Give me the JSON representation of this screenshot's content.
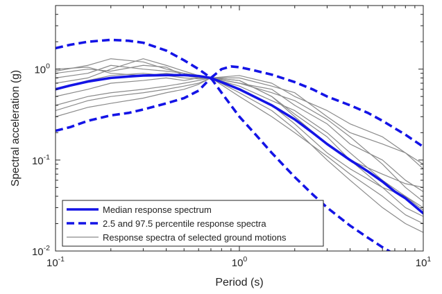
{
  "chart_data": {
    "type": "line",
    "title": "",
    "xlabel": "Period (s)",
    "ylabel": "Spectral acceleration (g)",
    "xscale": "log",
    "yscale": "log",
    "xlim": [
      0.1,
      10
    ],
    "ylim": [
      0.01,
      5
    ],
    "grid": false,
    "legend_position": "bottom-left",
    "x_ticks": [
      {
        "value": 0.1,
        "base": "10",
        "exp": "-1"
      },
      {
        "value": 1,
        "base": "10",
        "exp": "0"
      },
      {
        "value": 10,
        "base": "10",
        "exp": "1"
      }
    ],
    "y_ticks": [
      {
        "value": 0.01,
        "base": "10",
        "exp": "-2"
      },
      {
        "value": 0.1,
        "base": "10",
        "exp": "-1"
      },
      {
        "value": 1,
        "base": "10",
        "exp": "0"
      }
    ],
    "legend": [
      {
        "label": "Median response spectrum",
        "style": "median"
      },
      {
        "label": "2.5 and 97.5 percentile response spectra",
        "style": "percentile"
      },
      {
        "label": "Response spectra of selected ground motions",
        "style": "ground"
      }
    ],
    "colors": {
      "median": "#1414e6",
      "percentile": "#1414e6",
      "ground": "#8a8a8a",
      "axis": "#222222"
    },
    "series": [
      {
        "style": "median",
        "x": [
          0.1,
          0.12,
          0.15,
          0.2,
          0.25,
          0.3,
          0.4,
          0.5,
          0.6,
          0.7,
          0.8,
          1.0,
          1.2,
          1.5,
          2.0,
          2.5,
          3.0,
          4.0,
          5.0,
          6.0,
          7.0,
          8.0,
          10.0
        ],
        "y": [
          0.6,
          0.66,
          0.73,
          0.8,
          0.83,
          0.85,
          0.86,
          0.86,
          0.84,
          0.8,
          0.72,
          0.6,
          0.5,
          0.4,
          0.28,
          0.2,
          0.15,
          0.1,
          0.075,
          0.058,
          0.045,
          0.038,
          0.026
        ]
      },
      {
        "style": "percentile",
        "x": [
          0.1,
          0.12,
          0.15,
          0.2,
          0.25,
          0.3,
          0.4,
          0.5,
          0.6,
          0.7
        ],
        "y": [
          1.7,
          1.85,
          2.0,
          2.1,
          2.05,
          1.95,
          1.6,
          1.25,
          1.0,
          0.8
        ]
      },
      {
        "style": "percentile",
        "x": [
          0.7,
          0.8,
          0.9,
          1.0,
          1.2,
          1.5,
          2.0,
          2.5,
          3.0,
          4.0,
          5.0,
          6.0,
          8.0,
          10.0
        ],
        "y": [
          0.8,
          1.0,
          1.07,
          1.05,
          0.97,
          0.87,
          0.72,
          0.6,
          0.5,
          0.4,
          0.33,
          0.27,
          0.19,
          0.14
        ]
      },
      {
        "style": "percentile",
        "x": [
          0.1,
          0.12,
          0.15,
          0.2,
          0.25,
          0.3,
          0.4,
          0.5,
          0.6,
          0.7
        ],
        "y": [
          0.21,
          0.23,
          0.27,
          0.31,
          0.33,
          0.36,
          0.42,
          0.48,
          0.58,
          0.8
        ]
      },
      {
        "style": "percentile",
        "x": [
          0.7,
          0.8,
          1.0,
          1.2,
          1.5,
          2.0,
          2.5,
          3.0,
          4.0,
          5.0,
          6.0,
          6.8
        ],
        "y": [
          0.8,
          0.55,
          0.3,
          0.2,
          0.12,
          0.065,
          0.042,
          0.03,
          0.019,
          0.014,
          0.011,
          0.0095
        ]
      },
      {
        "style": "ground",
        "x": [
          0.1,
          0.15,
          0.2,
          0.3,
          0.4,
          0.5,
          0.6,
          0.7,
          1.0,
          1.5,
          2.0,
          3.0,
          4.0,
          6.0,
          8.0,
          10.0
        ],
        "y": [
          0.95,
          1.1,
          1.3,
          1.2,
          1.0,
          0.9,
          0.85,
          0.8,
          0.75,
          0.5,
          0.3,
          0.15,
          0.1,
          0.07,
          0.055,
          0.05
        ]
      },
      {
        "style": "ground",
        "x": [
          0.1,
          0.15,
          0.2,
          0.3,
          0.4,
          0.5,
          0.6,
          0.7,
          1.0,
          1.5,
          2.0,
          3.0,
          4.0,
          6.0,
          8.0,
          10.0
        ],
        "y": [
          0.9,
          1.0,
          0.95,
          1.1,
          1.05,
          0.85,
          0.82,
          0.8,
          0.65,
          0.45,
          0.35,
          0.2,
          0.12,
          0.06,
          0.04,
          0.03
        ]
      },
      {
        "style": "ground",
        "x": [
          0.1,
          0.15,
          0.2,
          0.3,
          0.4,
          0.5,
          0.6,
          0.7,
          1.0,
          1.5,
          2.0,
          3.0,
          4.0,
          6.0,
          8.0,
          10.0
        ],
        "y": [
          0.7,
          0.8,
          1.0,
          1.3,
          1.1,
          0.95,
          0.85,
          0.8,
          0.8,
          0.65,
          0.55,
          0.3,
          0.2,
          0.15,
          0.12,
          0.08
        ]
      },
      {
        "style": "ground",
        "x": [
          0.1,
          0.15,
          0.2,
          0.3,
          0.4,
          0.5,
          0.6,
          0.7,
          1.0,
          1.5,
          2.0,
          3.0,
          4.0,
          6.0,
          8.0,
          10.0
        ],
        "y": [
          0.5,
          0.6,
          0.7,
          0.75,
          0.8,
          0.75,
          0.8,
          0.8,
          0.7,
          0.55,
          0.45,
          0.28,
          0.18,
          0.09,
          0.05,
          0.035
        ]
      },
      {
        "style": "ground",
        "x": [
          0.1,
          0.15,
          0.2,
          0.3,
          0.4,
          0.5,
          0.6,
          0.7,
          1.0,
          1.5,
          2.0,
          3.0,
          4.0,
          6.0,
          8.0,
          10.0
        ],
        "y": [
          0.4,
          0.5,
          0.55,
          0.6,
          0.65,
          0.7,
          0.75,
          0.8,
          0.6,
          0.4,
          0.25,
          0.12,
          0.08,
          0.05,
          0.04,
          0.028
        ]
      },
      {
        "style": "ground",
        "x": [
          0.1,
          0.15,
          0.2,
          0.3,
          0.4,
          0.5,
          0.6,
          0.7,
          1.0,
          1.5,
          2.0,
          3.0,
          4.0,
          6.0,
          8.0,
          10.0
        ],
        "y": [
          0.35,
          0.45,
          0.5,
          0.55,
          0.6,
          0.65,
          0.7,
          0.8,
          0.55,
          0.35,
          0.22,
          0.1,
          0.06,
          0.03,
          0.02,
          0.016
        ]
      },
      {
        "style": "ground",
        "x": [
          0.1,
          0.15,
          0.2,
          0.3,
          0.4,
          0.5,
          0.6,
          0.7,
          1.0,
          1.5,
          2.0,
          3.0,
          4.0,
          6.0,
          8.0,
          10.0
        ],
        "y": [
          0.3,
          0.38,
          0.42,
          0.48,
          0.55,
          0.6,
          0.68,
          0.8,
          0.5,
          0.3,
          0.2,
          0.11,
          0.07,
          0.04,
          0.025,
          0.02
        ]
      },
      {
        "style": "ground",
        "x": [
          0.1,
          0.15,
          0.2,
          0.3,
          0.4,
          0.5,
          0.6,
          0.7,
          1.0,
          1.5,
          2.0,
          3.0,
          4.0,
          6.0,
          8.0,
          10.0
        ],
        "y": [
          1.0,
          1.05,
          0.9,
          0.85,
          0.9,
          0.85,
          0.8,
          0.8,
          0.85,
          0.7,
          0.5,
          0.35,
          0.25,
          0.18,
          0.12,
          0.09
        ]
      },
      {
        "style": "ground",
        "x": [
          0.1,
          0.15,
          0.2,
          0.3,
          0.4,
          0.5,
          0.6,
          0.7,
          1.0,
          1.5,
          2.0,
          3.0,
          4.0,
          6.0,
          8.0,
          10.0
        ],
        "y": [
          0.8,
          0.9,
          1.1,
          1.0,
          0.95,
          0.9,
          0.85,
          0.8,
          0.7,
          0.6,
          0.4,
          0.25,
          0.15,
          0.1,
          0.06,
          0.045
        ]
      },
      {
        "style": "ground",
        "x": [
          0.1,
          0.15,
          0.2,
          0.3,
          0.4,
          0.5,
          0.6,
          0.7,
          1.0,
          1.5,
          2.0,
          3.0,
          4.0,
          6.0,
          8.0,
          10.0
        ],
        "y": [
          0.6,
          0.75,
          0.85,
          0.9,
          0.85,
          0.8,
          0.78,
          0.8,
          0.75,
          0.5,
          0.32,
          0.18,
          0.1,
          0.05,
          0.03,
          0.024
        ]
      }
    ]
  }
}
